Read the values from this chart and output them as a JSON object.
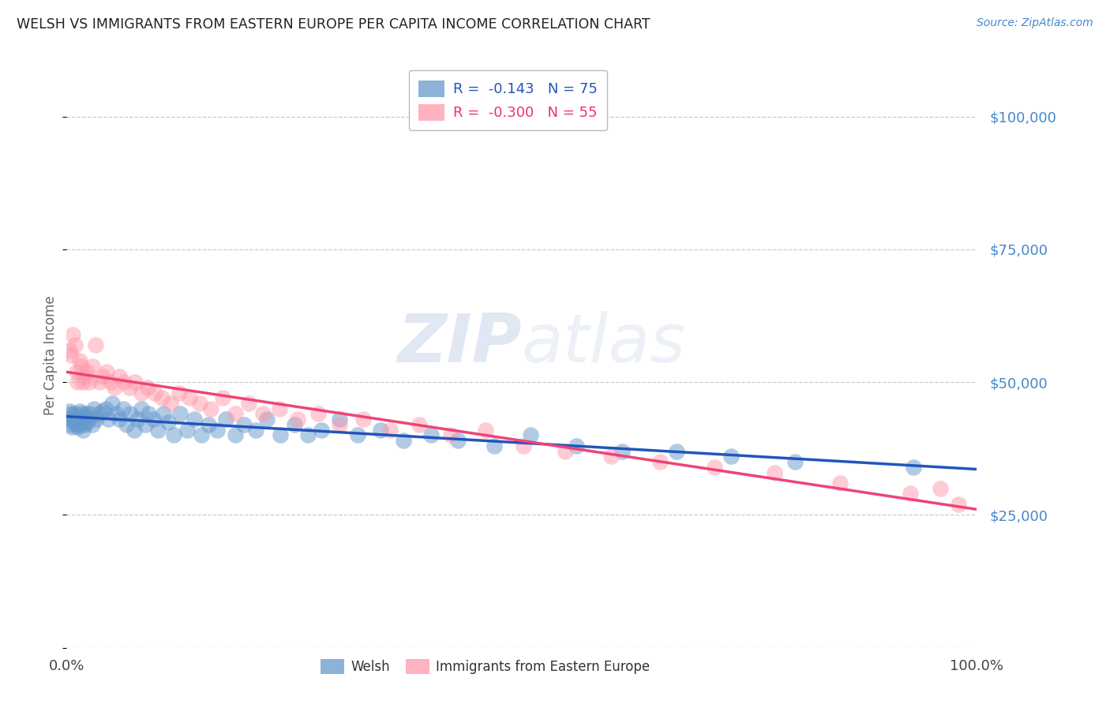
{
  "title": "WELSH VS IMMIGRANTS FROM EASTERN EUROPE PER CAPITA INCOME CORRELATION CHART",
  "source": "Source: ZipAtlas.com",
  "ylabel": "Per Capita Income",
  "yticks": [
    0,
    25000,
    50000,
    75000,
    100000
  ],
  "ytick_labels": [
    "",
    "$25,000",
    "$50,000",
    "$75,000",
    "$100,000"
  ],
  "xlim": [
    0,
    1.0
  ],
  "ylim": [
    0,
    110000
  ],
  "legend_label1": "Welsh",
  "legend_label2": "Immigrants from Eastern Europe",
  "watermark_zip": "ZIP",
  "watermark_atlas": "atlas",
  "blue_color": "#6699CC",
  "pink_color": "#FF99AA",
  "blue_line_color": "#2255BB",
  "pink_line_color": "#EE4477",
  "welsh_x": [
    0.002,
    0.003,
    0.004,
    0.005,
    0.006,
    0.007,
    0.008,
    0.009,
    0.01,
    0.011,
    0.012,
    0.013,
    0.014,
    0.015,
    0.016,
    0.017,
    0.018,
    0.019,
    0.02,
    0.021,
    0.022,
    0.024,
    0.026,
    0.028,
    0.03,
    0.033,
    0.036,
    0.04,
    0.043,
    0.046,
    0.05,
    0.054,
    0.058,
    0.062,
    0.066,
    0.07,
    0.074,
    0.078,
    0.082,
    0.086,
    0.09,
    0.095,
    0.1,
    0.106,
    0.112,
    0.118,
    0.125,
    0.132,
    0.14,
    0.148,
    0.156,
    0.165,
    0.175,
    0.185,
    0.195,
    0.208,
    0.22,
    0.235,
    0.25,
    0.265,
    0.28,
    0.3,
    0.32,
    0.345,
    0.37,
    0.4,
    0.43,
    0.47,
    0.51,
    0.56,
    0.61,
    0.67,
    0.73,
    0.8,
    0.93
  ],
  "welsh_y": [
    43000,
    44500,
    42000,
    44000,
    41500,
    43500,
    42500,
    44000,
    43000,
    42000,
    41500,
    43000,
    44500,
    42000,
    43000,
    44000,
    41000,
    43500,
    42000,
    44000,
    42500,
    43000,
    44000,
    42000,
    45000,
    43000,
    44000,
    44500,
    45000,
    43000,
    46000,
    44000,
    43000,
    45000,
    42000,
    44000,
    41000,
    43000,
    45000,
    42000,
    44000,
    43000,
    41000,
    44000,
    42500,
    40000,
    44000,
    41000,
    43000,
    40000,
    42000,
    41000,
    43000,
    40000,
    42000,
    41000,
    43000,
    40000,
    42000,
    40000,
    41000,
    43000,
    40000,
    41000,
    39000,
    40000,
    39000,
    38000,
    40000,
    38000,
    37000,
    37000,
    36000,
    35000,
    34000
  ],
  "eastern_x": [
    0.003,
    0.005,
    0.007,
    0.009,
    0.011,
    0.012,
    0.014,
    0.016,
    0.018,
    0.02,
    0.022,
    0.025,
    0.028,
    0.032,
    0.036,
    0.04,
    0.044,
    0.048,
    0.053,
    0.058,
    0.063,
    0.069,
    0.075,
    0.082,
    0.089,
    0.097,
    0.105,
    0.114,
    0.124,
    0.135,
    0.146,
    0.158,
    0.171,
    0.185,
    0.2,
    0.216,
    0.234,
    0.254,
    0.276,
    0.3,
    0.326,
    0.355,
    0.387,
    0.422,
    0.46,
    0.502,
    0.548,
    0.598,
    0.652,
    0.712,
    0.778,
    0.85,
    0.927,
    0.96,
    0.98
  ],
  "eastern_y": [
    56000,
    55000,
    59000,
    57000,
    52000,
    50000,
    54000,
    53000,
    50000,
    51000,
    52000,
    50000,
    53000,
    57000,
    50000,
    51000,
    52000,
    50000,
    49000,
    51000,
    50000,
    49000,
    50000,
    48000,
    49000,
    48000,
    47000,
    46000,
    48000,
    47000,
    46000,
    45000,
    47000,
    44000,
    46000,
    44000,
    45000,
    43000,
    44000,
    42000,
    43000,
    41000,
    42000,
    40000,
    41000,
    38000,
    37000,
    36000,
    35000,
    34000,
    33000,
    31000,
    29000,
    30000,
    27000
  ]
}
